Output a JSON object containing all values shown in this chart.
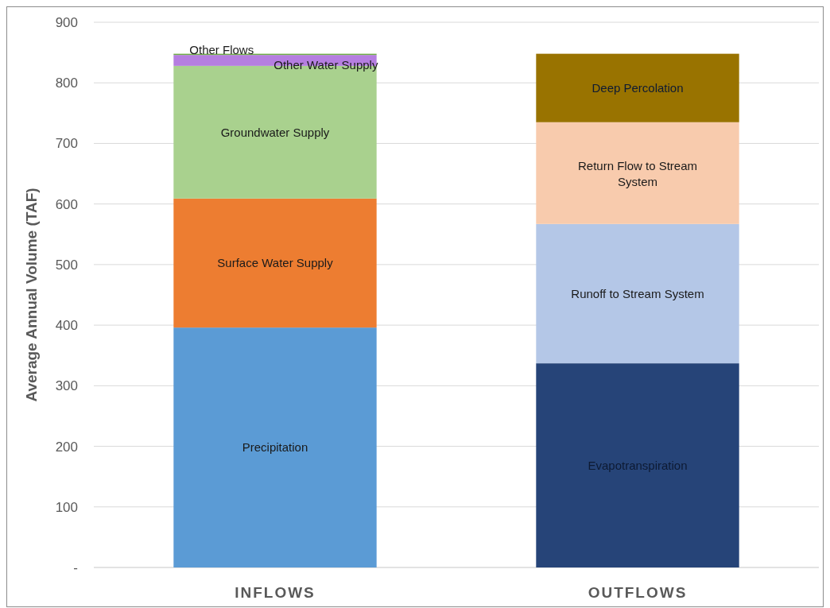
{
  "chart_data": {
    "type": "bar",
    "stacked": true,
    "ylabel": "Average Annual Volume (TAF)",
    "categories": [
      "INFLOWS",
      "OUTFLOWS"
    ],
    "series": [
      {
        "name": "Precipitation",
        "color": "#5b9bd5",
        "values": [
          396,
          null
        ]
      },
      {
        "name": "Surface Water Supply",
        "color": "#ed7d31",
        "values": [
          213,
          null
        ]
      },
      {
        "name": "Groundwater Supply",
        "color": "#a9d18e",
        "values": [
          219,
          null
        ]
      },
      {
        "name": "Other Water Supply",
        "color": "#b57ee0",
        "values": [
          18,
          null
        ]
      },
      {
        "name": "Other Flows",
        "color": "#70ad47",
        "values": [
          2,
          null
        ]
      },
      {
        "name": "Evapotranspiration",
        "color": "#264478",
        "values": [
          null,
          337
        ]
      },
      {
        "name": "Runoff to Stream System",
        "color": "#b4c7e7",
        "values": [
          null,
          230
        ]
      },
      {
        "name": "Return Flow to Stream System",
        "color": "#f8cbad",
        "values": [
          null,
          168
        ]
      },
      {
        "name": "Deep Percolation",
        "color": "#997300",
        "values": [
          null,
          113
        ]
      }
    ],
    "ylim": [
      0,
      900
    ],
    "yticks": [
      {
        "value": 0,
        "label": "-"
      },
      100,
      200,
      300,
      400,
      500,
      600,
      700,
      800,
      900
    ],
    "grid": "y"
  }
}
